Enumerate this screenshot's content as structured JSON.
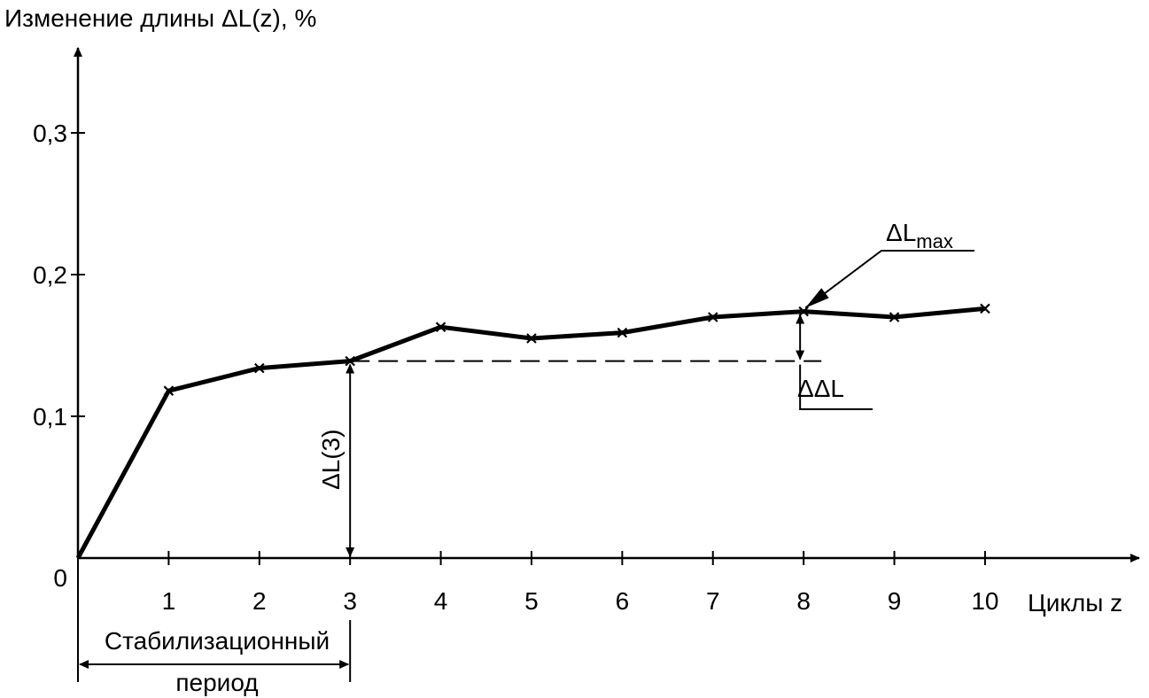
{
  "chart_data": {
    "type": "line",
    "title": "Изменение длины ΔL(z), %",
    "x_label": "Циклы z",
    "x": [
      0,
      1,
      2,
      3,
      4,
      5,
      6,
      7,
      8,
      9,
      10
    ],
    "values": [
      0,
      0.118,
      0.134,
      0.139,
      0.163,
      0.155,
      0.159,
      0.17,
      0.174,
      0.17,
      0.176
    ],
    "color": "#000000",
    "marker": "x",
    "xlim": [
      0,
      11.7
    ],
    "ylim": [
      0,
      0.36
    ],
    "xticks": [
      1,
      2,
      3,
      4,
      5,
      6,
      7,
      8,
      9,
      10
    ],
    "yticks": [
      0,
      {
        "value": 0.1,
        "label": "0,1"
      },
      {
        "value": 0.2,
        "label": "0,2"
      },
      {
        "value": 0.3,
        "label": "0,3"
      }
    ],
    "annotations": {
      "dl3": "ΔL(3)",
      "dlmax": {
        "main": "ΔL",
        "sub": "max"
      },
      "ddl": "ΔΔL",
      "period_line1": "Стабилизационный",
      "period_line2": "период"
    }
  }
}
